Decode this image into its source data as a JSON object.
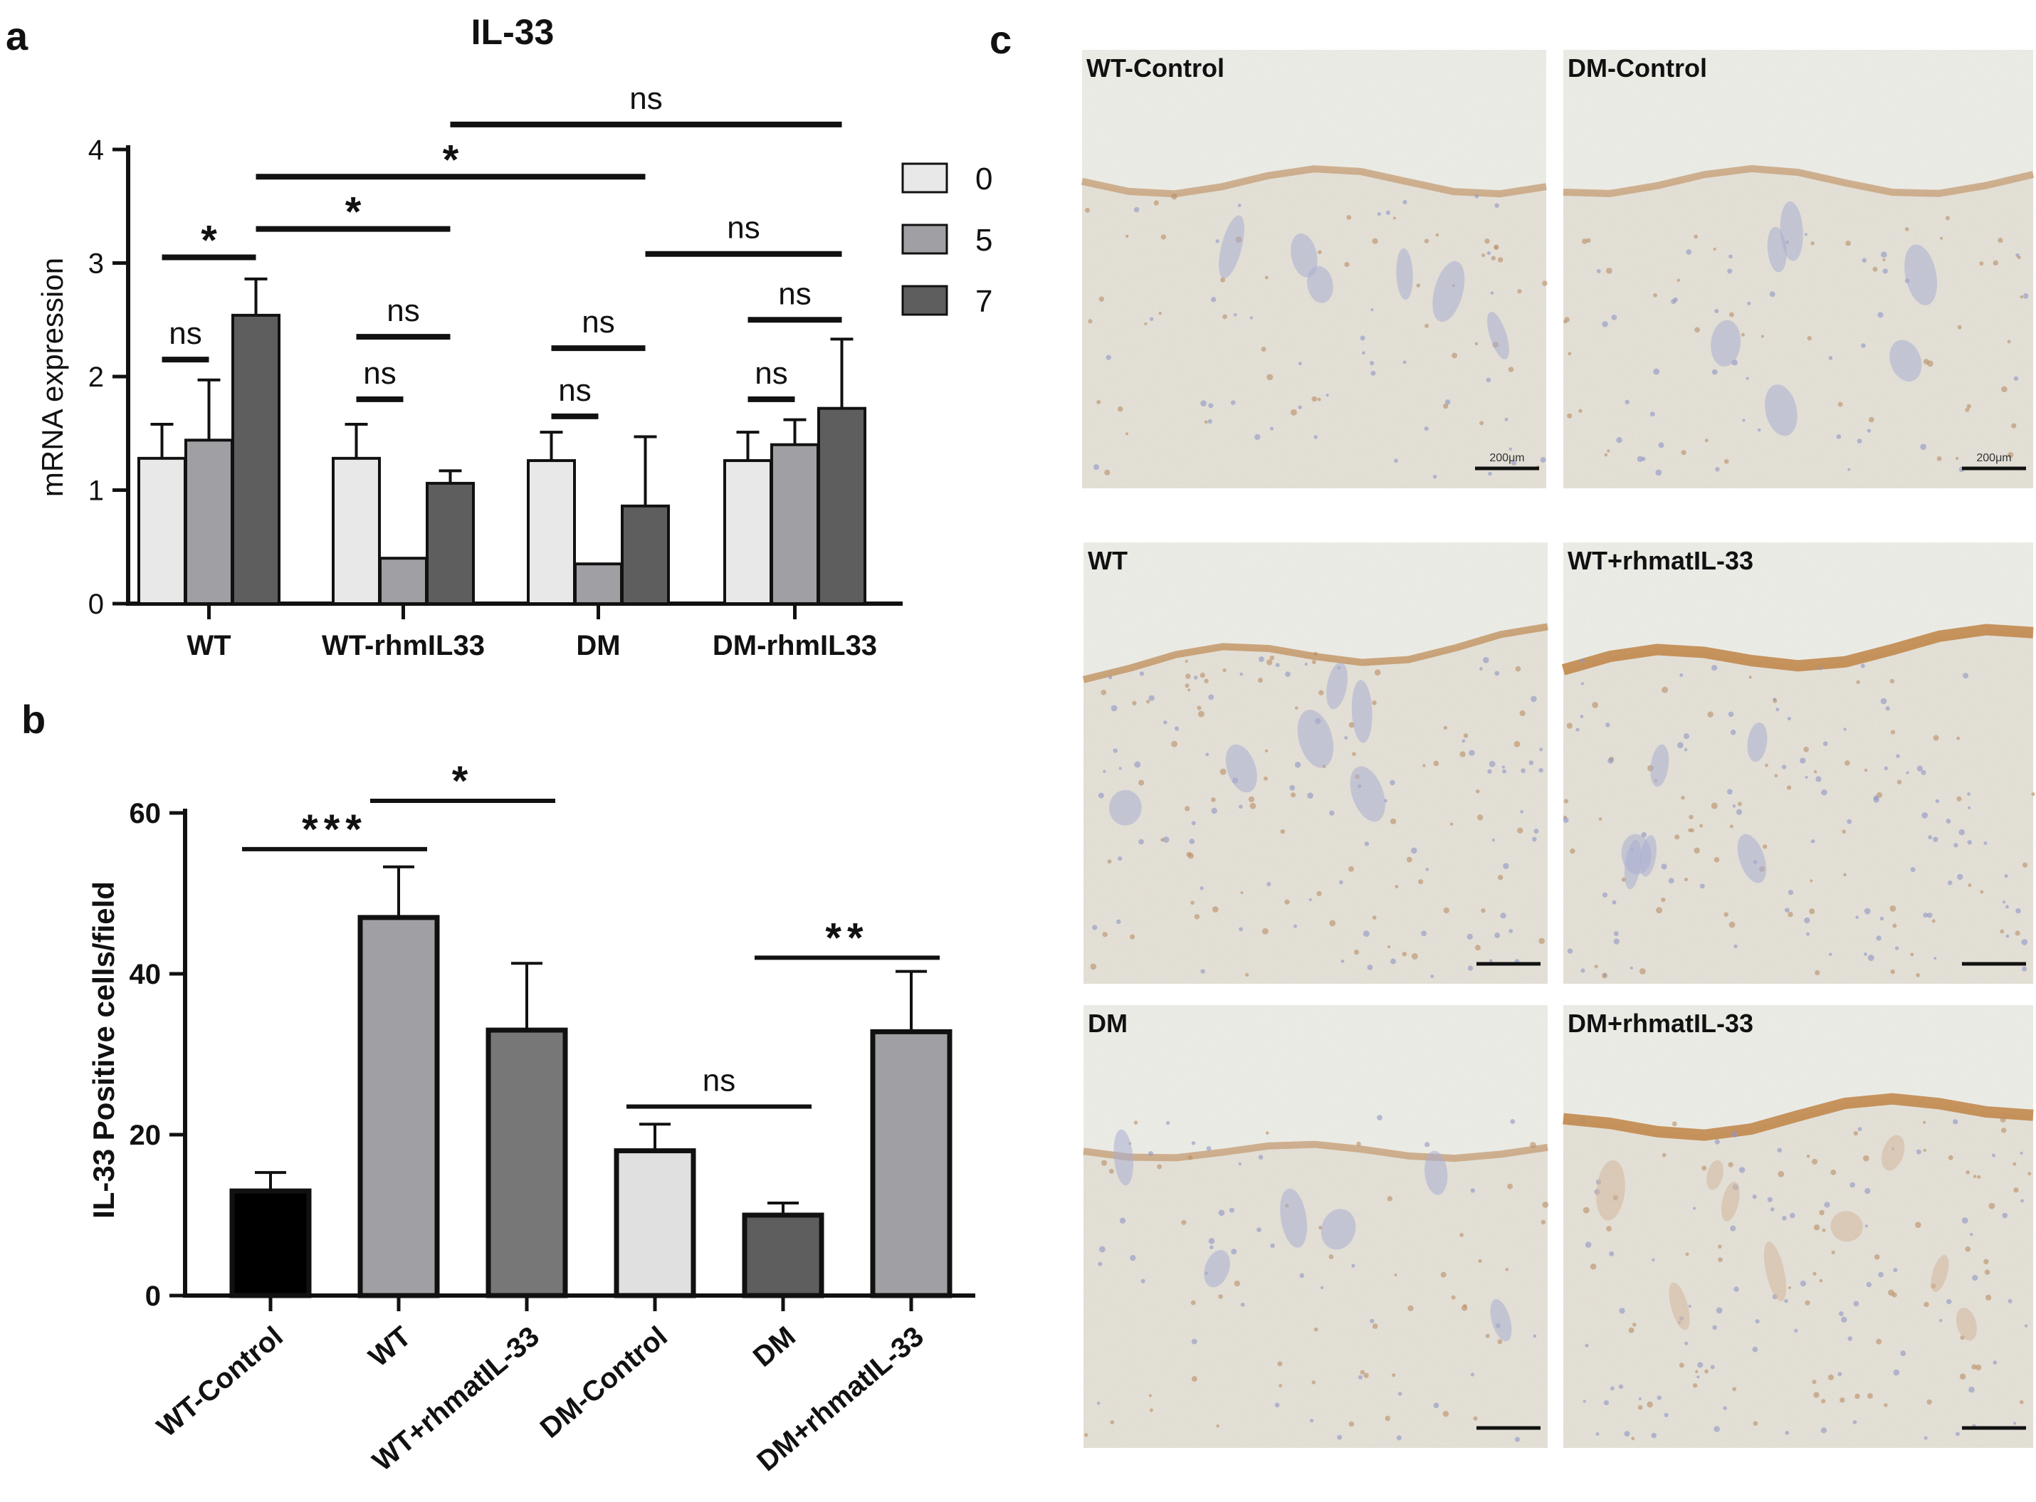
{
  "panels": {
    "a": "a",
    "b": "b",
    "c": "c"
  },
  "chart_data": [
    {
      "type": "bar",
      "title": "IL-33",
      "ylabel": "mRNA expression",
      "xlabel": "",
      "ylim": [
        0,
        4
      ],
      "yticks": [
        0,
        1,
        2,
        3,
        4
      ],
      "categories": [
        "WT",
        "WT-rhmIL33",
        "DM",
        "DM-rhmIL33"
      ],
      "series": [
        {
          "name": "0",
          "color": "#e8e8e8",
          "values": [
            1.28,
            1.28,
            1.26,
            1.26
          ],
          "errors": [
            0.3,
            0.3,
            0.25,
            0.25
          ]
        },
        {
          "name": "5",
          "color": "#a0a0a4",
          "values": [
            1.44,
            0.4,
            0.35,
            1.4
          ],
          "errors": [
            0.53,
            0,
            0,
            0.22
          ]
        },
        {
          "name": "7",
          "color": "#5e5e5e",
          "values": [
            2.54,
            1.06,
            0.86,
            1.72
          ],
          "errors": [
            0.32,
            0.11,
            0.61,
            0.61
          ]
        }
      ],
      "legend_position": "top-right",
      "significance": [
        {
          "label": "ns",
          "y": 2.15,
          "from": [
            0,
            0
          ],
          "to": [
            0,
            1
          ]
        },
        {
          "label": "*",
          "y": 3.05,
          "from": [
            0,
            0
          ],
          "to": [
            0,
            2
          ]
        },
        {
          "label": "ns",
          "y": 2.35,
          "from": [
            1,
            0
          ],
          "to": [
            1,
            2
          ]
        },
        {
          "label": "ns",
          "y": 1.8,
          "from": [
            1,
            0
          ],
          "to": [
            1,
            1
          ]
        },
        {
          "label": "ns",
          "y": 2.25,
          "from": [
            2,
            0
          ],
          "to": [
            2,
            2
          ]
        },
        {
          "label": "ns",
          "y": 1.65,
          "from": [
            2,
            0
          ],
          "to": [
            2,
            1
          ]
        },
        {
          "label": "ns",
          "y": 2.5,
          "from": [
            3,
            0
          ],
          "to": [
            3,
            2
          ]
        },
        {
          "label": "ns",
          "y": 1.8,
          "from": [
            3,
            0
          ],
          "to": [
            3,
            1
          ]
        },
        {
          "label": "*",
          "y": 3.3,
          "from": [
            0,
            2
          ],
          "to": [
            1,
            2
          ]
        },
        {
          "label": "*",
          "y": 3.76,
          "from": [
            0,
            2
          ],
          "to": [
            2,
            2
          ]
        },
        {
          "label": "ns",
          "y": 4.22,
          "from": [
            1,
            2
          ],
          "to": [
            3,
            2
          ]
        },
        {
          "label": "ns",
          "y": 3.08,
          "from": [
            2,
            2
          ],
          "to": [
            3,
            2
          ]
        }
      ]
    },
    {
      "type": "bar",
      "title": "",
      "ylabel": "IL-33 Positive cells/field",
      "xlabel": "",
      "ylim": [
        0,
        60
      ],
      "yticks": [
        0,
        20,
        40,
        60
      ],
      "categories": [
        "WT-Control",
        "WT",
        "WT+rhmatIL-33",
        "DM-Control",
        "DM",
        "DM+rhmatIL-33"
      ],
      "values": [
        13,
        47,
        33,
        18,
        10,
        32.8
      ],
      "errors": [
        2.3,
        6.3,
        8.3,
        3.3,
        1.5,
        7.5
      ],
      "colors": [
        "#000000",
        "#a0a0a4",
        "#777777",
        "#e0e0e0",
        "#5e5e5e",
        "#a0a0a4"
      ],
      "significance": [
        {
          "label": "***",
          "y": 55.5,
          "from": 0,
          "to": 1
        },
        {
          "label": "*",
          "y": 61.5,
          "from": 1,
          "to": 2
        },
        {
          "label": "ns",
          "y": 23.5,
          "from": 3,
          "to": 4
        },
        {
          "label": "**",
          "y": 42.0,
          "from": 4,
          "to": 5
        }
      ]
    }
  ],
  "micrographs": [
    {
      "label": "WT-Control",
      "scale": "200μm",
      "stain": "light"
    },
    {
      "label": "DM-Control",
      "scale": "200μm",
      "stain": "light"
    },
    {
      "label": "WT",
      "scale": "",
      "stain": "medium"
    },
    {
      "label": "WT+rhmatIL-33",
      "scale": "",
      "stain": "strong"
    },
    {
      "label": "DM",
      "scale": "",
      "stain": "light"
    },
    {
      "label": "DM+rhmatIL-33",
      "scale": "",
      "stain": "strong"
    }
  ]
}
